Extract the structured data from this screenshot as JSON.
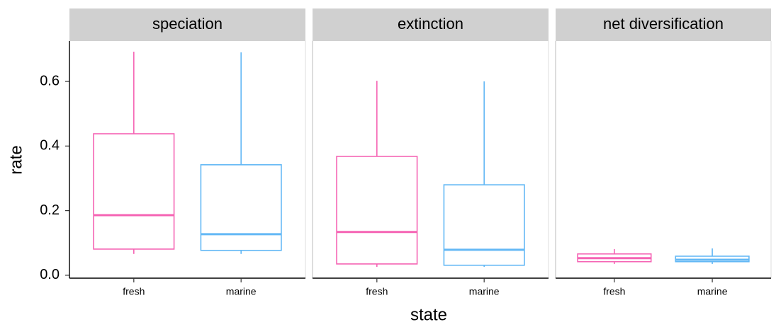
{
  "chart_data": {
    "type": "box",
    "xlabel": "state",
    "ylabel": "rate",
    "ylim": [
      -0.009,
      0.725
    ],
    "yticks": [
      {
        "value": 0,
        "label": "0.0"
      },
      0.2,
      0.4,
      0.6
    ],
    "categories": [
      "fresh",
      "marine"
    ],
    "colors": [
      "#f564b4",
      "#63b8f5"
    ],
    "facets": [
      {
        "title": "speciation",
        "boxes": [
          {
            "whislo": 0.066,
            "q1": 0.081,
            "med": 0.186,
            "q3": 0.438,
            "whishi": 0.692
          },
          {
            "whislo": 0.066,
            "q1": 0.077,
            "med": 0.127,
            "q3": 0.342,
            "whishi": 0.69
          }
        ]
      },
      {
        "title": "extinction",
        "boxes": [
          {
            "whislo": 0.026,
            "q1": 0.035,
            "med": 0.134,
            "q3": 0.368,
            "whishi": 0.602
          },
          {
            "whislo": 0.026,
            "q1": 0.031,
            "med": 0.079,
            "q3": 0.28,
            "whishi": 0.6
          }
        ]
      },
      {
        "title": "net diversification",
        "boxes": [
          {
            "whislo": 0.035,
            "q1": 0.042,
            "med": 0.053,
            "q3": 0.066,
            "whishi": 0.081
          },
          {
            "whislo": 0.035,
            "q1": 0.042,
            "med": 0.048,
            "q3": 0.059,
            "whishi": 0.083
          }
        ]
      }
    ]
  }
}
